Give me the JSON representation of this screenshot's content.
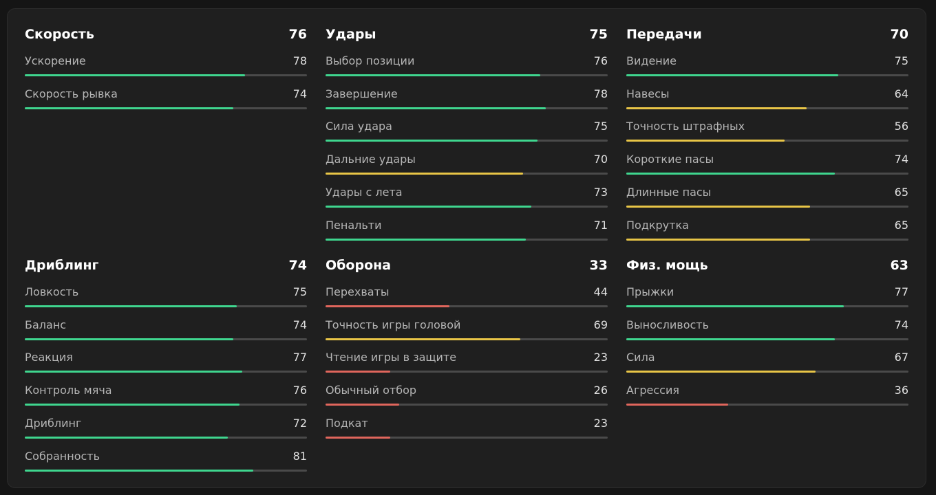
{
  "sections": [
    {
      "title": "Скорость",
      "value": 76,
      "stats": [
        {
          "label": "Ускорение",
          "value": 78,
          "color": "#3fd68f"
        },
        {
          "label": "Скорость рывка",
          "value": 74,
          "color": "#3fd68f"
        }
      ]
    },
    {
      "title": "Удары",
      "value": 75,
      "stats": [
        {
          "label": "Выбор позиции",
          "value": 76,
          "color": "#3fd68f"
        },
        {
          "label": "Завершение",
          "value": 78,
          "color": "#3fd68f"
        },
        {
          "label": "Сила удара",
          "value": 75,
          "color": "#3fd68f"
        },
        {
          "label": "Дальние удары",
          "value": 70,
          "color": "#e8c547"
        },
        {
          "label": "Удары с лета",
          "value": 73,
          "color": "#3fd68f"
        },
        {
          "label": "Пенальти",
          "value": 71,
          "color": "#3fd68f"
        }
      ]
    },
    {
      "title": "Передачи",
      "value": 70,
      "stats": [
        {
          "label": "Видение",
          "value": 75,
          "color": "#3fd68f"
        },
        {
          "label": "Навесы",
          "value": 64,
          "color": "#e8c547"
        },
        {
          "label": "Точность штрафных",
          "value": 56,
          "color": "#e8c547"
        },
        {
          "label": "Короткие пасы",
          "value": 74,
          "color": "#3fd68f"
        },
        {
          "label": "Длинные пасы",
          "value": 65,
          "color": "#e8c547"
        },
        {
          "label": "Подкрутка",
          "value": 65,
          "color": "#e8c547"
        }
      ]
    },
    {
      "title": "Дриблинг",
      "value": 74,
      "stats": [
        {
          "label": "Ловкость",
          "value": 75,
          "color": "#3fd68f"
        },
        {
          "label": "Баланс",
          "value": 74,
          "color": "#3fd68f"
        },
        {
          "label": "Реакция",
          "value": 77,
          "color": "#3fd68f"
        },
        {
          "label": "Контроль мяча",
          "value": 76,
          "color": "#3fd68f"
        },
        {
          "label": "Дриблинг",
          "value": 72,
          "color": "#3fd68f"
        },
        {
          "label": "Собранность",
          "value": 81,
          "color": "#3fd68f"
        }
      ]
    },
    {
      "title": "Оборона",
      "value": 33,
      "stats": [
        {
          "label": "Перехваты",
          "value": 44,
          "color": "#e0665c"
        },
        {
          "label": "Точность игры головой",
          "value": 69,
          "color": "#e8c547"
        },
        {
          "label": "Чтение игры в защите",
          "value": 23,
          "color": "#e0665c"
        },
        {
          "label": "Обычный отбор",
          "value": 26,
          "color": "#e0665c"
        },
        {
          "label": "Подкат",
          "value": 23,
          "color": "#e0665c"
        }
      ]
    },
    {
      "title": "Физ. мощь",
      "value": 63,
      "stats": [
        {
          "label": "Прыжки",
          "value": 77,
          "color": "#3fd68f"
        },
        {
          "label": "Выносливость",
          "value": 74,
          "color": "#3fd68f"
        },
        {
          "label": "Сила",
          "value": 67,
          "color": "#e8c547"
        },
        {
          "label": "Агрессия",
          "value": 36,
          "color": "#e0665c"
        }
      ]
    }
  ]
}
